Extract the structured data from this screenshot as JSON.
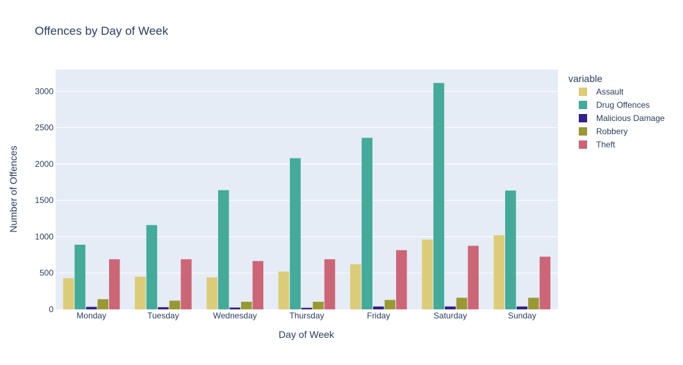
{
  "chart_data": {
    "type": "bar",
    "title": "Offences by Day of Week",
    "xlabel": "Day of Week",
    "ylabel": "Number of Offences",
    "ylim": [
      0,
      3300
    ],
    "yticks": [
      0,
      500,
      1000,
      1500,
      2000,
      2500,
      3000
    ],
    "grid": true,
    "legend_title": "variable",
    "legend_position": "right",
    "categories": [
      "Monday",
      "Tuesday",
      "Wednesday",
      "Thursday",
      "Friday",
      "Saturday",
      "Sunday"
    ],
    "series": [
      {
        "name": "Assault",
        "color": "#DDCC77",
        "values": [
          430,
          450,
          440,
          520,
          620,
          960,
          1020
        ]
      },
      {
        "name": "Drug Offences",
        "color": "#44AA99",
        "values": [
          890,
          1160,
          1640,
          2080,
          2360,
          3115,
          1635
        ]
      },
      {
        "name": "Malicious Damage",
        "color": "#332288",
        "values": [
          35,
          30,
          25,
          22,
          40,
          40,
          40
        ]
      },
      {
        "name": "Robbery",
        "color": "#999933",
        "values": [
          140,
          120,
          105,
          105,
          130,
          160,
          160
        ]
      },
      {
        "name": "Theft",
        "color": "#CC6677",
        "values": [
          690,
          690,
          665,
          690,
          815,
          875,
          725
        ]
      }
    ]
  }
}
